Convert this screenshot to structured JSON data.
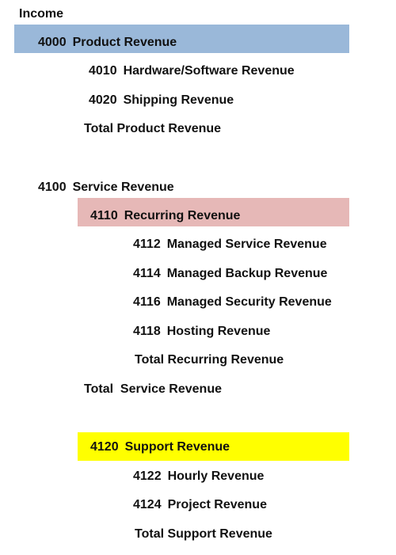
{
  "colors": {
    "product_band": "#9ab8d9",
    "recurring_band": "#e6b8b7",
    "support_band": "#ffff00"
  },
  "header": {
    "label": "Income"
  },
  "product": {
    "code": "4000",
    "name": "Product Revenue",
    "items": [
      {
        "code": "4010",
        "name": "Hardware/Software Revenue"
      },
      {
        "code": "4020",
        "name": "Shipping Revenue"
      }
    ],
    "total": "Total Product Revenue"
  },
  "service": {
    "code": "4100",
    "name": "Service Revenue",
    "recurring": {
      "code": "4110",
      "name": "Recurring Revenue",
      "items": [
        {
          "code": "4112",
          "name": "Managed Service Revenue"
        },
        {
          "code": "4114",
          "name": "Managed Backup Revenue"
        },
        {
          "code": "4116",
          "name": "Managed Security Revenue"
        },
        {
          "code": "4118",
          "name": "Hosting Revenue"
        }
      ],
      "total": "Total Recurring Revenue"
    },
    "total": "Total  Service Revenue"
  },
  "support": {
    "code": "4120",
    "name": "Support Revenue",
    "items": [
      {
        "code": "4122",
        "name": "Hourly Revenue"
      },
      {
        "code": "4124",
        "name": "Project Revenue"
      }
    ],
    "total": "Total Support Revenue"
  }
}
